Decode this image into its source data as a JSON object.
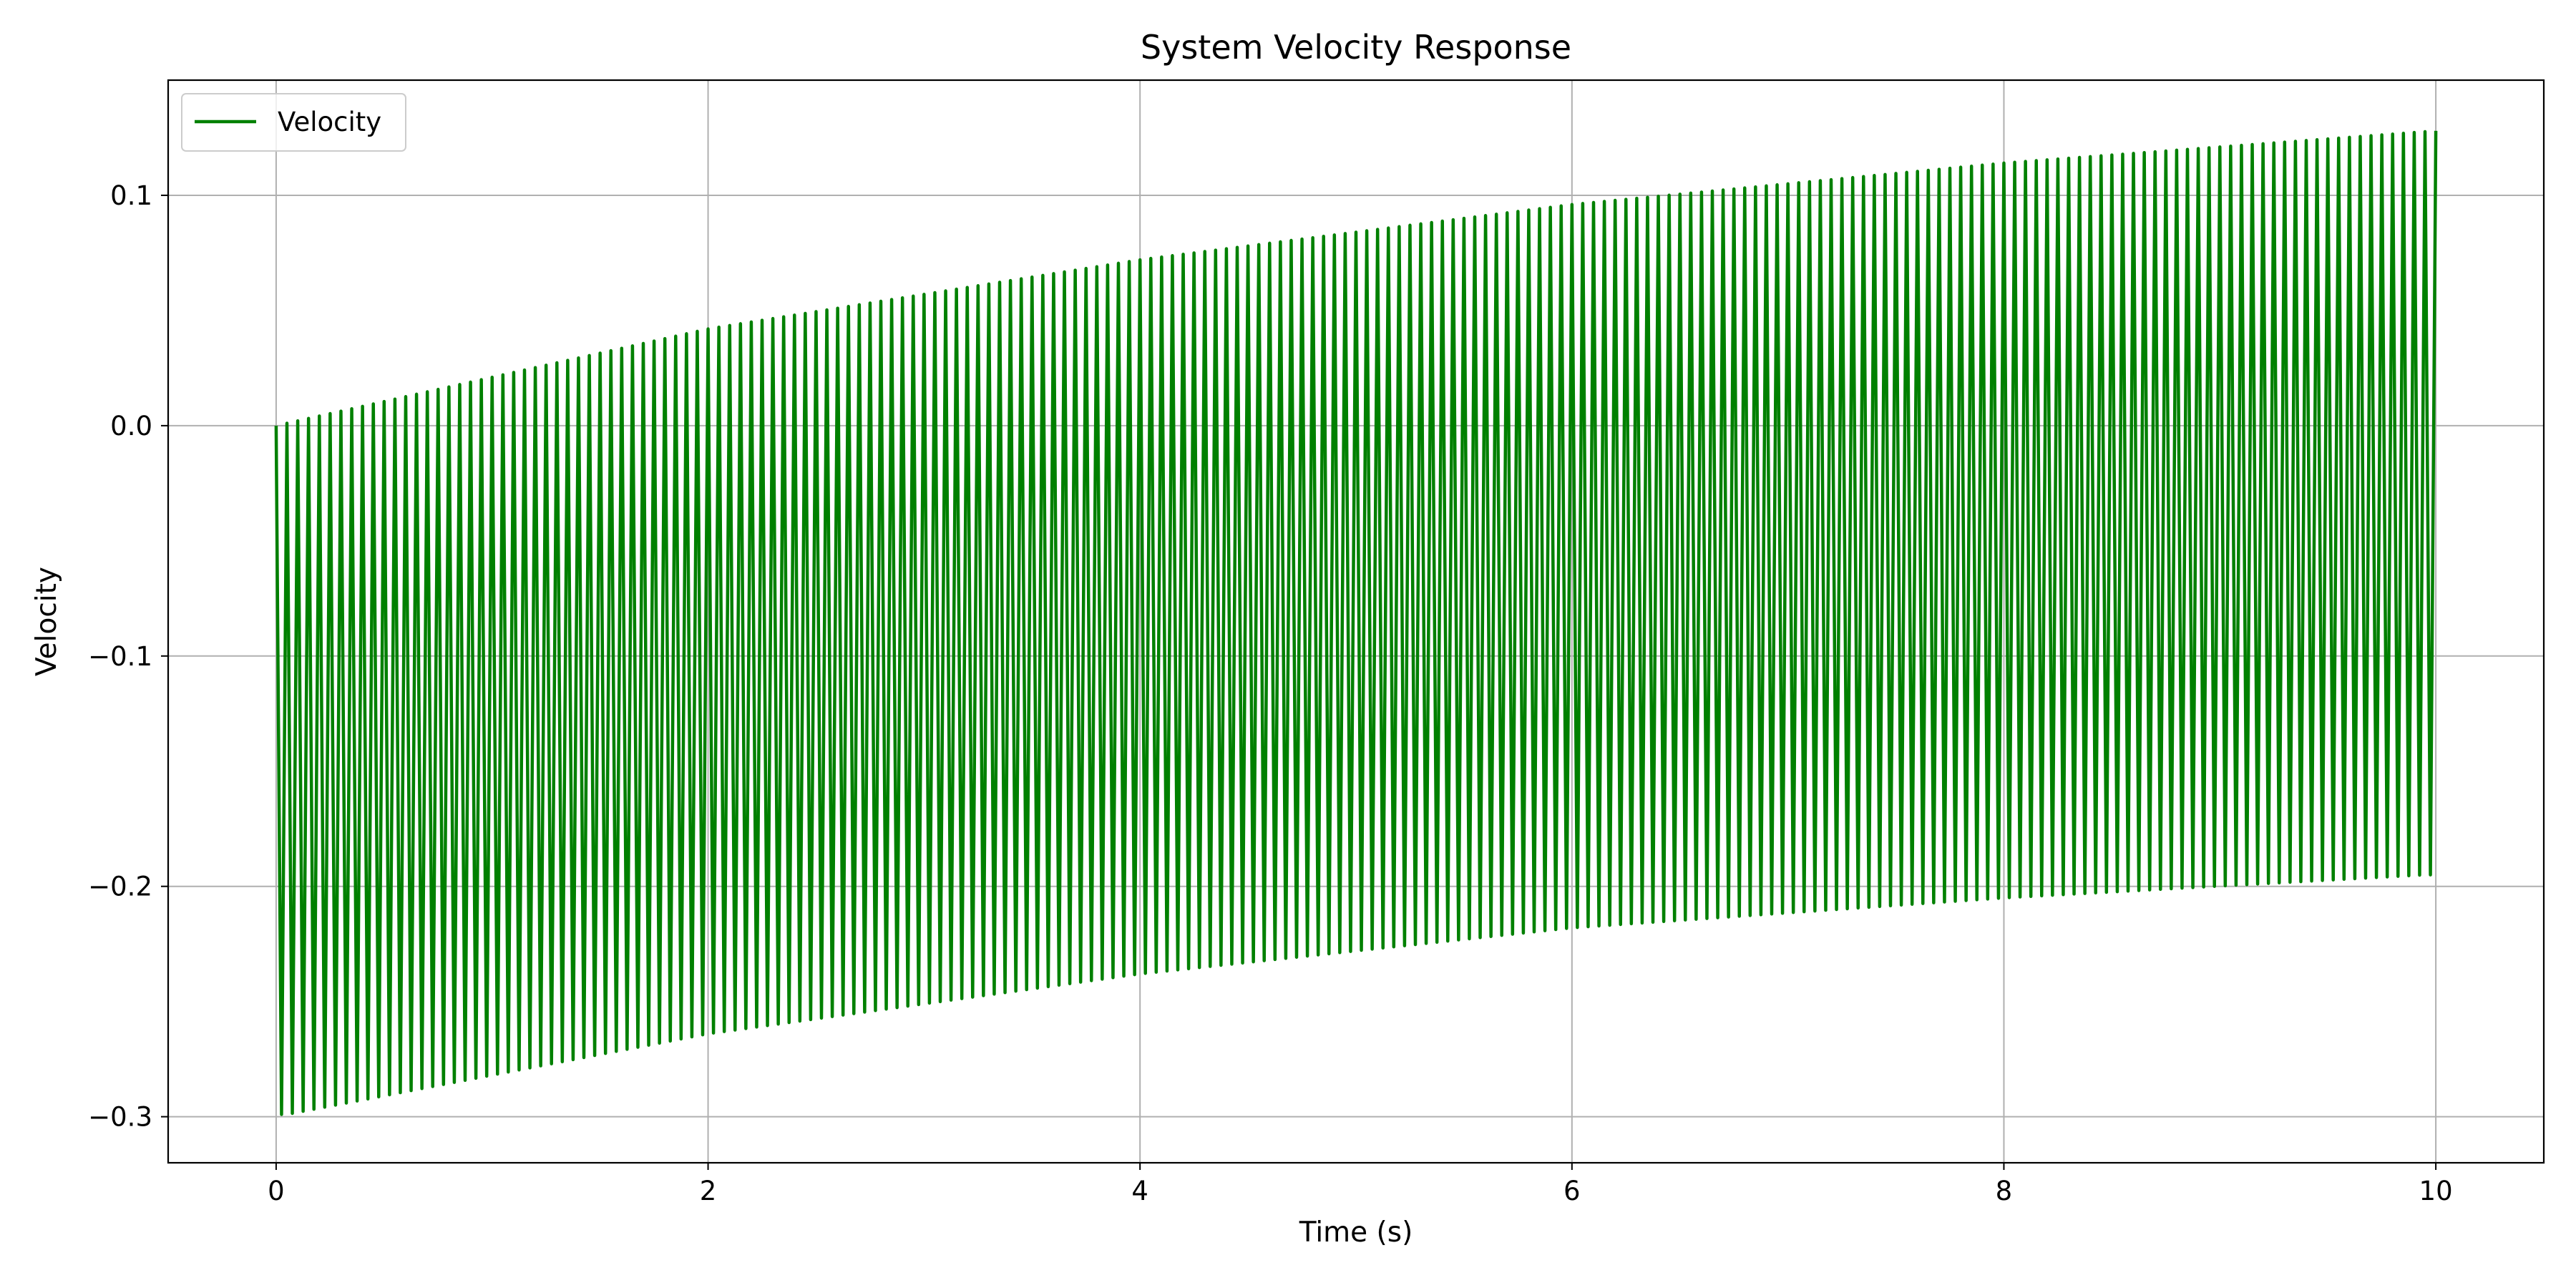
{
  "chart_data": {
    "type": "line",
    "title": "System Velocity Response",
    "xlabel": "Time (s)",
    "ylabel": "Velocity",
    "xlim": [
      -0.5,
      10.5
    ],
    "ylim": [
      -0.32,
      0.15
    ],
    "xticks": [
      0,
      2,
      4,
      6,
      8,
      10
    ],
    "xtick_labels": [
      "0",
      "2",
      "4",
      "6",
      "8",
      "10"
    ],
    "yticks": [
      0.1,
      0.0,
      -0.1,
      -0.2,
      -0.3
    ],
    "ytick_labels": [
      "0.1",
      "0.0",
      "−0.1",
      "−0.2",
      "−0.3"
    ],
    "grid": true,
    "legend": {
      "position": "upper-left",
      "entries": [
        "Velocity"
      ]
    },
    "series": [
      {
        "name": "Velocity",
        "color": "#008000",
        "x_start": 0,
        "x_end": 10,
        "period": 0.05,
        "description_upper_envelope": [
          [
            0,
            0.0
          ],
          [
            2,
            0.042
          ],
          [
            4,
            0.072
          ],
          [
            6,
            0.096
          ],
          [
            8,
            0.114
          ],
          [
            10,
            0.128
          ]
        ],
        "description_lower_envelope": [
          [
            0.05,
            -0.299
          ],
          [
            2,
            -0.264
          ],
          [
            4,
            -0.238
          ],
          [
            6,
            -0.218
          ],
          [
            8,
            -0.205
          ],
          [
            9.95,
            -0.195
          ]
        ]
      }
    ]
  }
}
